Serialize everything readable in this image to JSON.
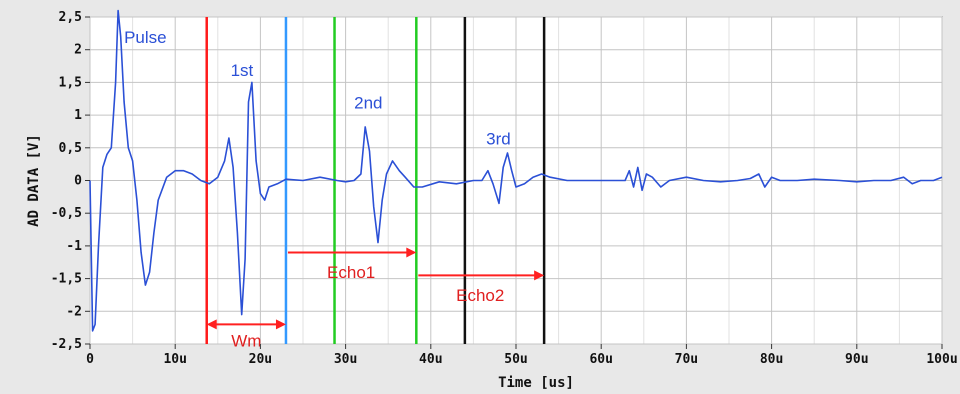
{
  "chart_data": {
    "type": "line",
    "xlabel": "Time [us]",
    "ylabel": "AD DATA [V]",
    "xlim": [
      0,
      100
    ],
    "ylim": [
      -2.5,
      2.5
    ],
    "grid": true,
    "x_ticks": [
      0,
      10,
      20,
      30,
      40,
      50,
      60,
      70,
      80,
      90,
      100
    ],
    "x_tick_labels": [
      "0",
      "10u",
      "20u",
      "30u",
      "40u",
      "50u",
      "60u",
      "70u",
      "80u",
      "90u",
      "100u"
    ],
    "y_ticks": [
      2.5,
      2,
      1.5,
      1,
      0.5,
      0,
      -0.5,
      -1,
      -1.5,
      -2,
      -2.5
    ],
    "y_tick_labels": [
      "2,5",
      "2",
      "1,5",
      "1",
      "0,5",
      "0",
      "-0,5",
      "-1",
      "-1,5",
      "-2",
      "-2,5"
    ],
    "series": [
      {
        "color": "#2b50d6",
        "x": [
          0,
          0.3,
          0.6,
          1.0,
          1.5,
          2.0,
          2.5,
          3.0,
          3.3,
          3.6,
          4.0,
          4.5,
          5.0,
          5.5,
          6.0,
          6.5,
          7.0,
          7.5,
          8.0,
          9.0,
          10.0,
          11.0,
          12.0,
          13.0,
          14.0,
          15.0,
          15.8,
          16.3,
          16.8,
          17.3,
          17.8,
          18.2,
          18.6,
          19.0,
          19.5,
          20.0,
          20.5,
          21.0,
          22.0,
          23.0,
          25.0,
          27.0,
          29.0,
          30.0,
          31.0,
          31.8,
          32.3,
          32.8,
          33.3,
          33.8,
          34.3,
          34.8,
          35.5,
          36.3,
          37.0,
          38.0,
          39.0,
          41.0,
          43.0,
          45.0,
          46.0,
          46.7,
          47.3,
          48.0,
          48.5,
          49.0,
          49.5,
          50.0,
          51.0,
          52.0,
          53.0,
          54.0,
          56.0,
          58.0,
          60.0,
          62.0,
          62.8,
          63.3,
          63.8,
          64.3,
          64.8,
          65.3,
          66.0,
          67.0,
          68.0,
          70.0,
          72.0,
          74.0,
          76.0,
          77.5,
          78.5,
          79.2,
          80.0,
          81.0,
          83.0,
          85.0,
          88.0,
          90.0,
          92.0,
          94.0,
          95.5,
          96.5,
          97.5,
          99.0,
          100.0
        ],
        "y": [
          0,
          -2.3,
          -2.2,
          -1.0,
          0.2,
          0.4,
          0.5,
          1.5,
          2.6,
          2.2,
          1.2,
          0.5,
          0.3,
          -0.3,
          -1.1,
          -1.6,
          -1.4,
          -0.8,
          -0.3,
          0.05,
          0.15,
          0.15,
          0.1,
          0.0,
          -0.05,
          0.05,
          0.3,
          0.65,
          0.2,
          -0.8,
          -2.05,
          -1.2,
          1.2,
          1.5,
          0.3,
          -0.2,
          -0.3,
          -0.1,
          -0.05,
          0.02,
          0.0,
          0.05,
          0.0,
          -0.02,
          0.0,
          0.1,
          0.82,
          0.45,
          -0.4,
          -0.95,
          -0.3,
          0.1,
          0.3,
          0.15,
          0.05,
          -0.1,
          -0.1,
          -0.02,
          -0.05,
          0.0,
          0.0,
          0.15,
          -0.05,
          -0.35,
          0.2,
          0.42,
          0.15,
          -0.1,
          -0.05,
          0.05,
          0.1,
          0.05,
          0.0,
          0.0,
          0.0,
          0.0,
          0.0,
          0.15,
          -0.1,
          0.2,
          -0.15,
          0.1,
          0.05,
          -0.1,
          0.0,
          0.05,
          0.0,
          -0.02,
          0.0,
          0.03,
          0.1,
          -0.1,
          0.05,
          0.0,
          0.0,
          0.02,
          0.0,
          -0.02,
          0.0,
          0.0,
          0.05,
          -0.05,
          0.0,
          0.0,
          0.05
        ]
      }
    ],
    "vlines": [
      {
        "x": 13.7,
        "color": "#ff1a1a"
      },
      {
        "x": 23.0,
        "color": "#3399ff"
      },
      {
        "x": 28.7,
        "color": "#22cc22"
      },
      {
        "x": 38.3,
        "color": "#22cc22"
      },
      {
        "x": 44.0,
        "color": "#111111"
      },
      {
        "x": 53.3,
        "color": "#111111"
      }
    ],
    "arrows": [
      {
        "label": "Wm",
        "x1": 13.7,
        "x2": 23.0,
        "y": -2.2,
        "label_y": -2.45
      },
      {
        "label": "Echo1",
        "x1": 23.0,
        "x2": 38.3,
        "y": -1.1,
        "label_y": -1.4
      },
      {
        "label": "Echo2",
        "x1": 38.3,
        "x2": 53.3,
        "y": -1.45,
        "label_y": -1.75
      }
    ],
    "annotations": [
      {
        "text": "Pulse",
        "x": 4.0,
        "y": 2.1
      },
      {
        "text": "1st",
        "x": 16.5,
        "y": 1.6
      },
      {
        "text": "2nd",
        "x": 31.0,
        "y": 1.1
      },
      {
        "text": "3rd",
        "x": 46.5,
        "y": 0.55
      }
    ],
    "colors": {
      "annotation_text": "#2b50d6",
      "arrow": "#ff2020"
    }
  }
}
